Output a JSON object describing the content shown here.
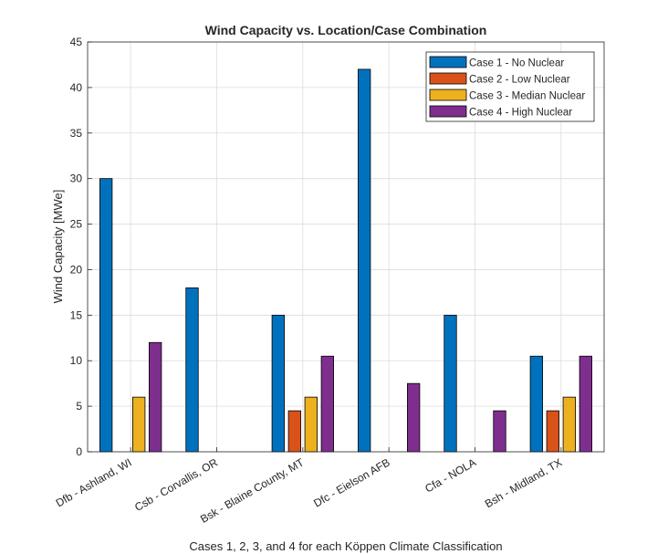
{
  "chart_data": {
    "type": "bar",
    "title": "Wind Capacity vs. Location/Case Combination",
    "xlabel": "Cases 1, 2, 3, and 4 for each Köppen Climate Classification",
    "ylabel": "Wind Capacity [MWe]",
    "ylim": [
      0,
      45
    ],
    "yticks": [
      0,
      5,
      10,
      15,
      20,
      25,
      30,
      35,
      40,
      45
    ],
    "grid": true,
    "legend_position": "top-right",
    "categories": [
      "Dfb - Ashland, WI",
      "Csb - Corvallis, OR",
      "Bsk - Blaine County, MT",
      "Dfc - Eielson AFB",
      "Cfa - NOLA",
      "Bsh - Midland, TX"
    ],
    "series": [
      {
        "name": "Case 1 - No Nuclear",
        "color": "#0072BD",
        "values": [
          30,
          18,
          15,
          42,
          15,
          10.5
        ]
      },
      {
        "name": "Case 2 - Low Nuclear",
        "color": "#D95319",
        "values": [
          0,
          0,
          4.5,
          0,
          0,
          4.5
        ]
      },
      {
        "name": "Case 3 - Median Nuclear",
        "color": "#EDB120",
        "values": [
          6,
          0,
          6,
          0,
          0,
          6
        ]
      },
      {
        "name": "Case 4 - High Nuclear",
        "color": "#7E2F8E",
        "values": [
          12,
          0,
          10.5,
          7.5,
          4.5,
          10.5
        ]
      }
    ]
  }
}
